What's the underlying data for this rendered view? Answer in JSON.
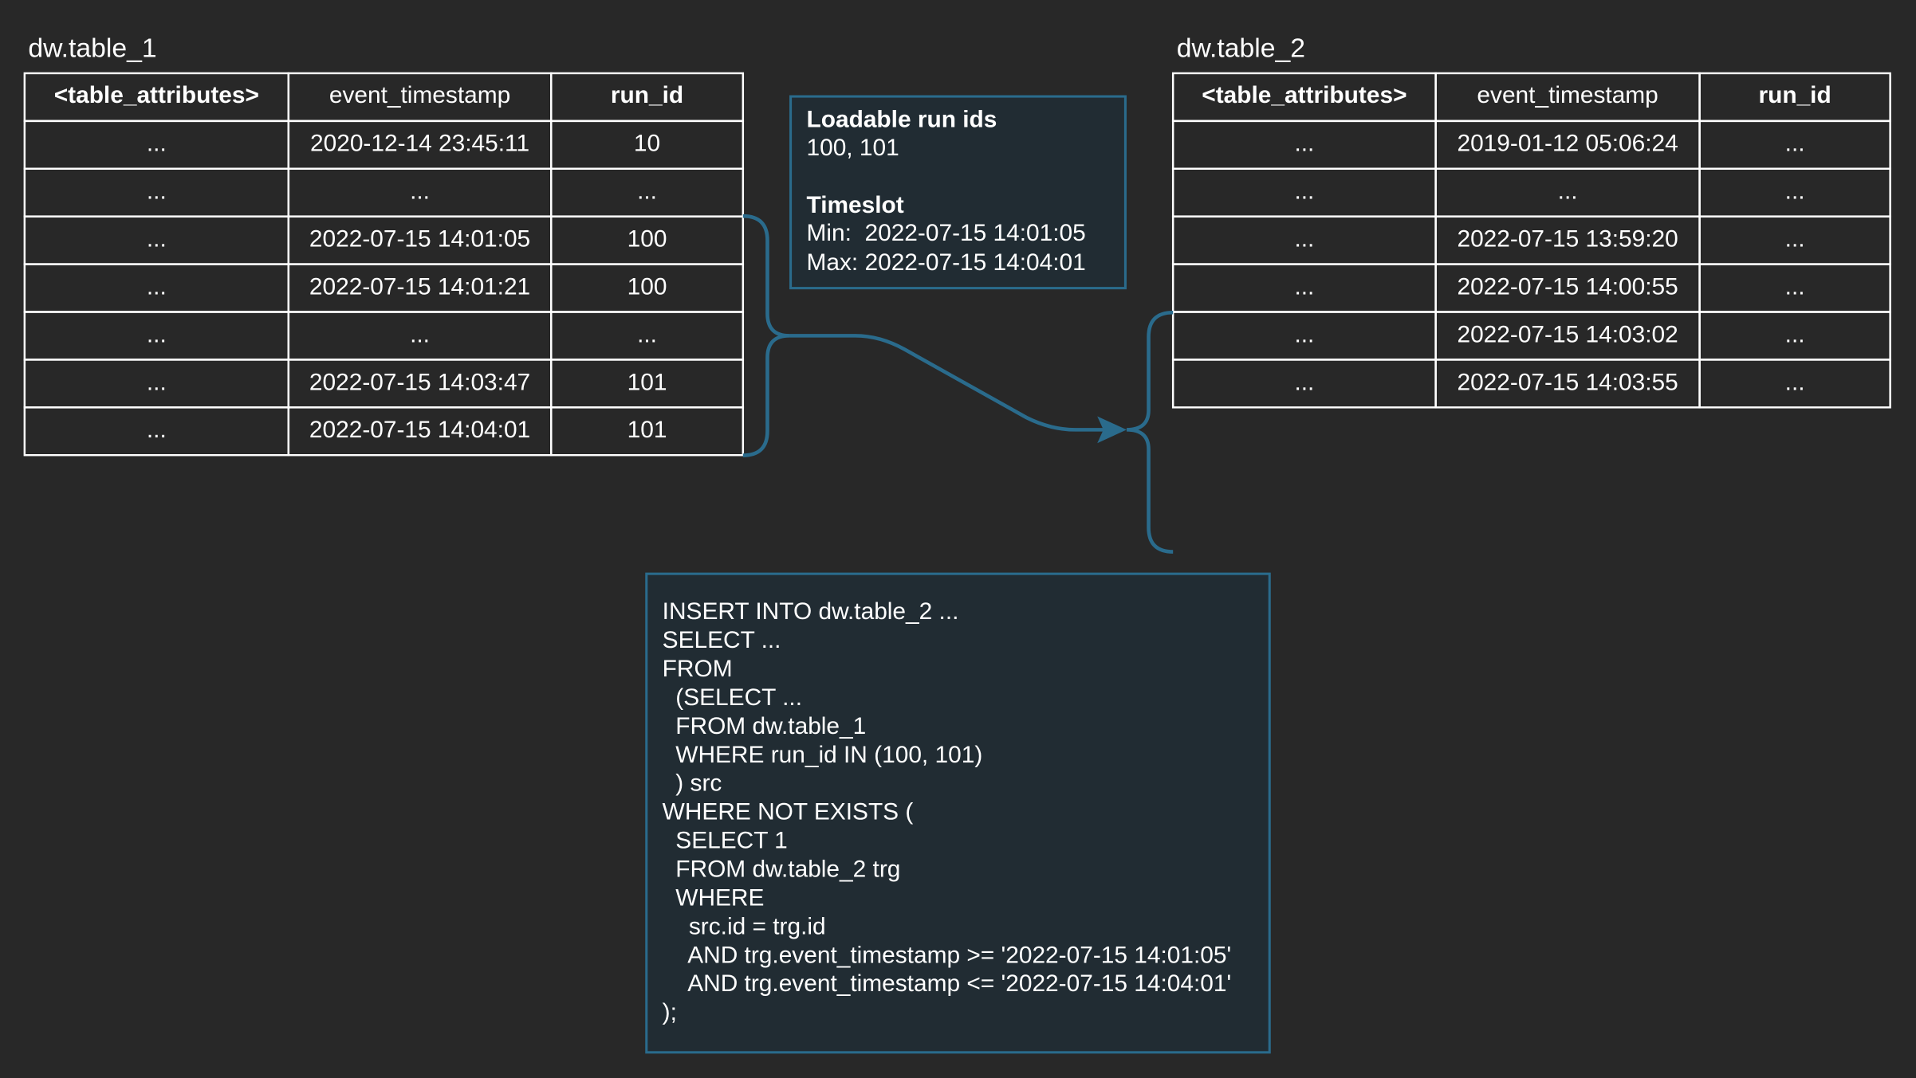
{
  "table_1": {
    "title": "dw.table_1",
    "header": [
      "<table_attributes>",
      "event_timestamp",
      "run_id"
    ],
    "rows": [
      [
        "...",
        "2020-12-14 23:45:11",
        "10"
      ],
      [
        "...",
        "...",
        "..."
      ],
      [
        "...",
        "2022-07-15 14:01:05",
        "100"
      ],
      [
        "...",
        "2022-07-15 14:01:21",
        "100"
      ],
      [
        "...",
        "...",
        "..."
      ],
      [
        "...",
        "2022-07-15 14:03:47",
        "101"
      ],
      [
        "...",
        "2022-07-15 14:04:01",
        "101"
      ]
    ]
  },
  "table_2": {
    "title": "dw.table_2",
    "header": [
      "<table_attributes>",
      "event_timestamp",
      "run_id"
    ],
    "rows": [
      [
        "...",
        "2019-01-12 05:06:24",
        "..."
      ],
      [
        "...",
        "...",
        "..."
      ],
      [
        "...",
        "2022-07-15 13:59:20",
        "..."
      ],
      [
        "...",
        "2022-07-15 14:00:55",
        "..."
      ],
      [
        "...",
        "2022-07-15 14:03:02",
        "..."
      ],
      [
        "...",
        "2022-07-15 14:03:55",
        "..."
      ]
    ]
  },
  "info_box": {
    "run_ids_heading": "Loadable run ids",
    "run_ids": "100, 101",
    "timeslot_heading": "Timeslot",
    "timeslot_lines": [
      "Min:  2022-07-15 14:01:05",
      "Max: 2022-07-15 14:04:01"
    ]
  },
  "sql": {
    "lines": [
      "INSERT INTO dw.table_2 ...",
      "SELECT ...",
      "FROM",
      "  (SELECT ...",
      "  FROM dw.table_1",
      "  WHERE run_id IN (100, 101)",
      "  ) src",
      "WHERE NOT EXISTS (",
      "  SELECT 1",
      "  FROM dw.table_2 trg",
      "  WHERE",
      "    src.id = trg.id",
      "    AND trg.event_timestamp >= '2022-07-15 14:01:05'",
      "    AND trg.event_timestamp <= '2022-07-15 14:04:01'",
      ");"
    ]
  }
}
